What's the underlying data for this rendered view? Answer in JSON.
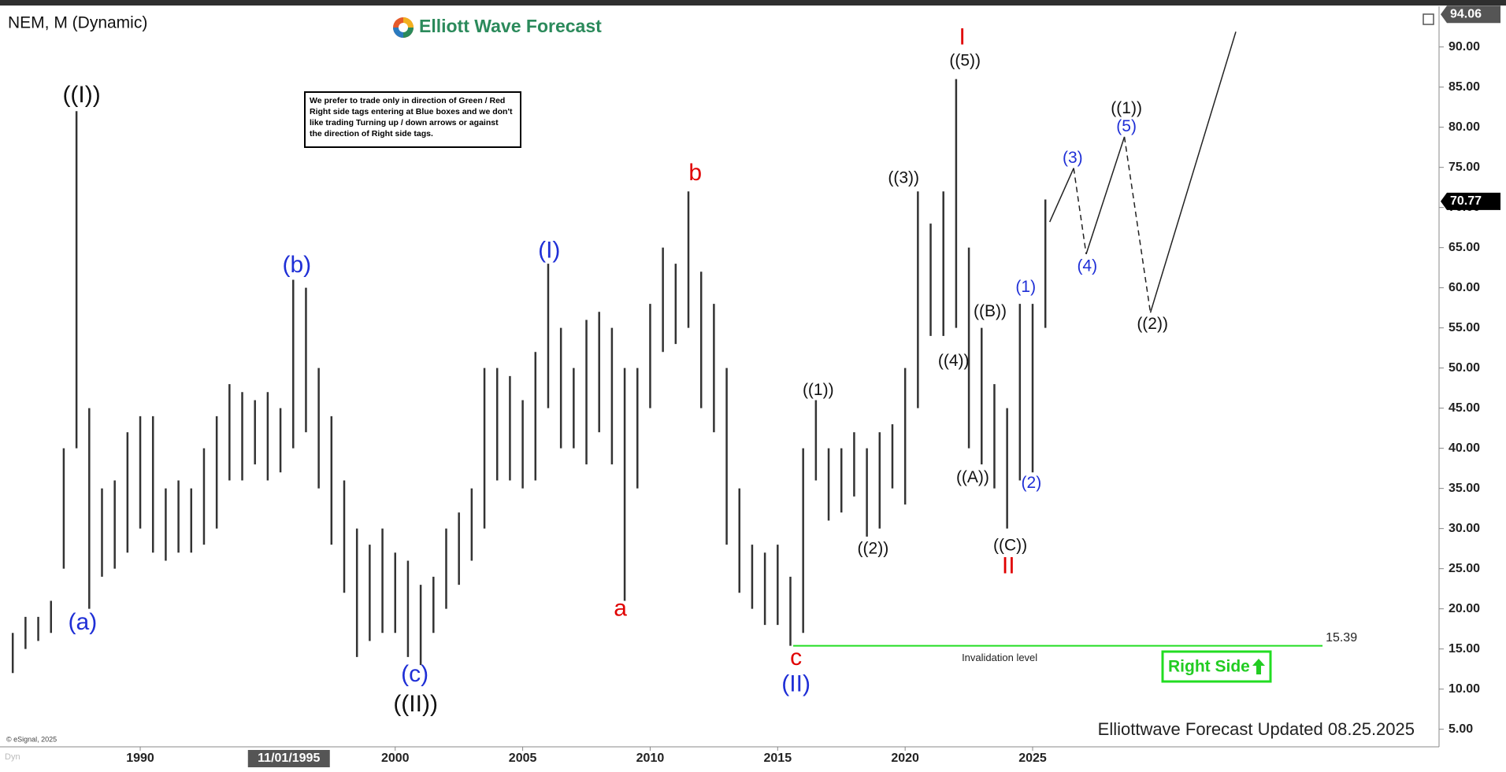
{
  "chart_data": {
    "type": "range",
    "title": "NEM, M (Dynamic)",
    "color": "#333333",
    "bars": [
      {
        "x": 1985.0,
        "low": 12,
        "high": 17
      },
      {
        "x": 1985.5,
        "low": 15,
        "high": 19
      },
      {
        "x": 1986.0,
        "low": 16,
        "high": 19
      },
      {
        "x": 1986.5,
        "low": 17,
        "high": 21
      },
      {
        "x": 1987.0,
        "low": 25,
        "high": 40
      },
      {
        "x": 1987.5,
        "low": 40,
        "high": 82
      },
      {
        "x": 1988.0,
        "low": 20,
        "high": 45
      },
      {
        "x": 1988.5,
        "low": 24,
        "high": 35
      },
      {
        "x": 1989.0,
        "low": 25,
        "high": 36
      },
      {
        "x": 1989.5,
        "low": 27,
        "high": 42
      },
      {
        "x": 1990.0,
        "low": 30,
        "high": 44
      },
      {
        "x": 1990.5,
        "low": 27,
        "high": 44
      },
      {
        "x": 1991.0,
        "low": 26,
        "high": 35
      },
      {
        "x": 1991.5,
        "low": 27,
        "high": 36
      },
      {
        "x": 1992.0,
        "low": 27,
        "high": 35
      },
      {
        "x": 1992.5,
        "low": 28,
        "high": 40
      },
      {
        "x": 1993.0,
        "low": 30,
        "high": 44
      },
      {
        "x": 1993.5,
        "low": 36,
        "high": 48
      },
      {
        "x": 1994.0,
        "low": 36,
        "high": 47
      },
      {
        "x": 1994.5,
        "low": 38,
        "high": 46
      },
      {
        "x": 1995.0,
        "low": 36,
        "high": 47
      },
      {
        "x": 1995.5,
        "low": 37,
        "high": 45
      },
      {
        "x": 1996.0,
        "low": 40,
        "high": 61
      },
      {
        "x": 1996.5,
        "low": 42,
        "high": 60
      },
      {
        "x": 1997.0,
        "low": 35,
        "high": 50
      },
      {
        "x": 1997.5,
        "low": 28,
        "high": 44
      },
      {
        "x": 1998.0,
        "low": 22,
        "high": 36
      },
      {
        "x": 1998.5,
        "low": 14,
        "high": 30
      },
      {
        "x": 1999.0,
        "low": 16,
        "high": 28
      },
      {
        "x": 1999.5,
        "low": 17,
        "high": 30
      },
      {
        "x": 2000.0,
        "low": 17,
        "high": 27
      },
      {
        "x": 2000.5,
        "low": 14,
        "high": 26
      },
      {
        "x": 2001.0,
        "low": 13,
        "high": 23
      },
      {
        "x": 2001.5,
        "low": 17,
        "high": 24
      },
      {
        "x": 2002.0,
        "low": 20,
        "high": 30
      },
      {
        "x": 2002.5,
        "low": 23,
        "high": 32
      },
      {
        "x": 2003.0,
        "low": 26,
        "high": 35
      },
      {
        "x": 2003.5,
        "low": 30,
        "high": 50
      },
      {
        "x": 2004.0,
        "low": 36,
        "high": 50
      },
      {
        "x": 2004.5,
        "low": 36,
        "high": 49
      },
      {
        "x": 2005.0,
        "low": 35,
        "high": 46
      },
      {
        "x": 2005.5,
        "low": 36,
        "high": 52
      },
      {
        "x": 2006.0,
        "low": 45,
        "high": 63
      },
      {
        "x": 2006.5,
        "low": 40,
        "high": 55
      },
      {
        "x": 2007.0,
        "low": 40,
        "high": 50
      },
      {
        "x": 2007.5,
        "low": 38,
        "high": 56
      },
      {
        "x": 2008.0,
        "low": 42,
        "high": 57
      },
      {
        "x": 2008.5,
        "low": 38,
        "high": 55
      },
      {
        "x": 2009.0,
        "low": 21,
        "high": 50
      },
      {
        "x": 2009.5,
        "low": 35,
        "high": 50
      },
      {
        "x": 2010.0,
        "low": 45,
        "high": 58
      },
      {
        "x": 2010.5,
        "low": 52,
        "high": 65
      },
      {
        "x": 2011.0,
        "low": 53,
        "high": 63
      },
      {
        "x": 2011.5,
        "low": 55,
        "high": 72
      },
      {
        "x": 2012.0,
        "low": 45,
        "high": 62
      },
      {
        "x": 2012.5,
        "low": 42,
        "high": 58
      },
      {
        "x": 2013.0,
        "low": 28,
        "high": 50
      },
      {
        "x": 2013.5,
        "low": 22,
        "high": 35
      },
      {
        "x": 2014.0,
        "low": 20,
        "high": 28
      },
      {
        "x": 2014.5,
        "low": 18,
        "high": 27
      },
      {
        "x": 2015.0,
        "low": 18,
        "high": 28
      },
      {
        "x": 2015.5,
        "low": 15.4,
        "high": 24
      },
      {
        "x": 2016.0,
        "low": 17,
        "high": 40
      },
      {
        "x": 2016.5,
        "low": 36,
        "high": 46
      },
      {
        "x": 2017.0,
        "low": 31,
        "high": 40
      },
      {
        "x": 2017.5,
        "low": 32,
        "high": 40
      },
      {
        "x": 2018.0,
        "low": 34,
        "high": 42
      },
      {
        "x": 2018.5,
        "low": 29,
        "high": 40
      },
      {
        "x": 2019.0,
        "low": 30,
        "high": 42
      },
      {
        "x": 2019.5,
        "low": 35,
        "high": 43
      },
      {
        "x": 2020.0,
        "low": 33,
        "high": 50
      },
      {
        "x": 2020.5,
        "low": 45,
        "high": 72
      },
      {
        "x": 2021.0,
        "low": 54,
        "high": 68
      },
      {
        "x": 2021.5,
        "low": 54,
        "high": 72
      },
      {
        "x": 2022.0,
        "low": 55,
        "high": 86
      },
      {
        "x": 2022.5,
        "low": 40,
        "high": 65
      },
      {
        "x": 2023.0,
        "low": 38,
        "high": 55
      },
      {
        "x": 2023.5,
        "low": 35,
        "high": 48
      },
      {
        "x": 2024.0,
        "low": 30,
        "high": 45
      },
      {
        "x": 2024.5,
        "low": 36,
        "high": 58
      },
      {
        "x": 2025.0,
        "low": 37,
        "high": 58
      },
      {
        "x": 2025.5,
        "low": 55,
        "high": 71
      }
    ],
    "xlim": [
      1984.5,
      2040.94
    ],
    "xticks": [
      1990,
      2000,
      2005,
      2010,
      2015,
      2020,
      2025
    ],
    "crosshair": {
      "value": 1995.83,
      "label": "11/01/1995"
    },
    "ylim": [
      2.81,
      94.87
    ],
    "yticks": [
      {
        "value": 5,
        "label": "5.00"
      },
      {
        "value": 10,
        "label": "10.00"
      },
      {
        "value": 15,
        "label": "15.00"
      },
      {
        "value": 20,
        "label": "20.00"
      },
      {
        "value": 25,
        "label": "25.00"
      },
      {
        "value": 30,
        "label": "30.00"
      },
      {
        "value": 35,
        "label": "35.00"
      },
      {
        "value": 40,
        "label": "40.00"
      },
      {
        "value": 45,
        "label": "45.00"
      },
      {
        "value": 50,
        "label": "50.00"
      },
      {
        "value": 55,
        "label": "55.00"
      },
      {
        "value": 60,
        "label": "60.00"
      },
      {
        "value": 65,
        "label": "65.00"
      },
      {
        "value": 70,
        "label": "70.00"
      },
      {
        "value": 75,
        "label": "75.00"
      },
      {
        "value": 80,
        "label": "80.00"
      },
      {
        "value": 85,
        "label": "85.00"
      },
      {
        "value": 90,
        "label": "90.00"
      }
    ],
    "price_markers": [
      94.06,
      70.77
    ],
    "projection": {
      "x": [
        2025.67,
        2026.61,
        2027.1,
        2028.6,
        2029.62,
        2032.97
      ],
      "values": [
        68.2,
        74.9,
        64.2,
        78.8,
        56.9,
        91.9
      ]
    },
    "invalidation": {
      "value": 15.39,
      "x": [
        2015.61,
        2036.37
      ],
      "text": "Invalidation level",
      "color": "#22dd22"
    },
    "annotations": {
      "large": [
        {
          "text": "((I))",
          "x": 1987.7,
          "y": 83.9,
          "color": "#111111"
        },
        {
          "text": "(a)",
          "x": 1987.74,
          "y": 18.2,
          "color": "#1f2fd6"
        },
        {
          "text": "(b)",
          "x": 1996.14,
          "y": 62.7,
          "color": "#1f2fd6"
        },
        {
          "text": "(c)",
          "x": 2000.77,
          "y": 11.7,
          "color": "#1f2fd6"
        },
        {
          "text": "((II))",
          "x": 2000.8,
          "y": 8.0,
          "color": "#111111"
        },
        {
          "text": "(I)",
          "x": 2006.04,
          "y": 64.5,
          "color": "#1f2fd6"
        },
        {
          "text": "a",
          "x": 2008.83,
          "y": 19.9,
          "color": "#e00000"
        },
        {
          "text": "b",
          "x": 2011.77,
          "y": 74.2,
          "color": "#e00000"
        },
        {
          "text": "c",
          "x": 2015.72,
          "y": 13.8,
          "color": "#e00000"
        },
        {
          "text": "(II)",
          "x": 2015.72,
          "y": 10.5,
          "color": "#1f2fd6"
        },
        {
          "text": "I",
          "x": 2022.24,
          "y": 91.1,
          "color": "#e00000"
        },
        {
          "text": "II",
          "x": 2024.05,
          "y": 25.2,
          "color": "#e00000"
        }
      ],
      "small": [
        {
          "text": "((1))",
          "x": 2016.59,
          "y": 47.2,
          "color": "#111111"
        },
        {
          "text": "((2))",
          "x": 2018.74,
          "y": 27.4,
          "color": "#111111"
        },
        {
          "text": "((3))",
          "x": 2019.94,
          "y": 73.6,
          "color": "#111111"
        },
        {
          "text": "((4))",
          "x": 2021.9,
          "y": 50.8,
          "color": "#111111"
        },
        {
          "text": "((5))",
          "x": 2022.35,
          "y": 88.2,
          "color": "#111111"
        },
        {
          "text": "((B))",
          "x": 2023.33,
          "y": 57.0,
          "color": "#111111"
        },
        {
          "text": "((A))",
          "x": 2022.65,
          "y": 36.3,
          "color": "#111111"
        },
        {
          "text": "((C))",
          "x": 2024.12,
          "y": 27.8,
          "color": "#111111"
        },
        {
          "text": "(1)",
          "x": 2024.73,
          "y": 60.0,
          "color": "#1f2fd6"
        },
        {
          "text": "(2)",
          "x": 2024.95,
          "y": 35.6,
          "color": "#1f2fd6"
        },
        {
          "text": "(3)",
          "x": 2026.57,
          "y": 76.1,
          "color": "#1f2fd6"
        },
        {
          "text": "(4)",
          "x": 2027.14,
          "y": 62.6,
          "color": "#1f2fd6"
        },
        {
          "text": "((1))",
          "x": 2028.68,
          "y": 82.3,
          "color": "#111111"
        },
        {
          "text": "(5)",
          "x": 2028.68,
          "y": 80.0,
          "color": "#1f2fd6"
        },
        {
          "text": "((2))",
          "x": 2029.7,
          "y": 55.4,
          "color": "#111111"
        }
      ]
    }
  },
  "logo": "Elliott Wave Forecast",
  "notice": [
    "We prefer to trade only in direction of Green / Red",
    "Right side tags entering at Blue boxes and we don't",
    "like trading Turning up / down arrows or against",
    "the direction of Right side tags."
  ],
  "badge": "Right Side",
  "footer": "Elliottwave Forecast Updated 08.25.2025",
  "copyright": "© eSignal, 2025",
  "corner": "Dyn"
}
